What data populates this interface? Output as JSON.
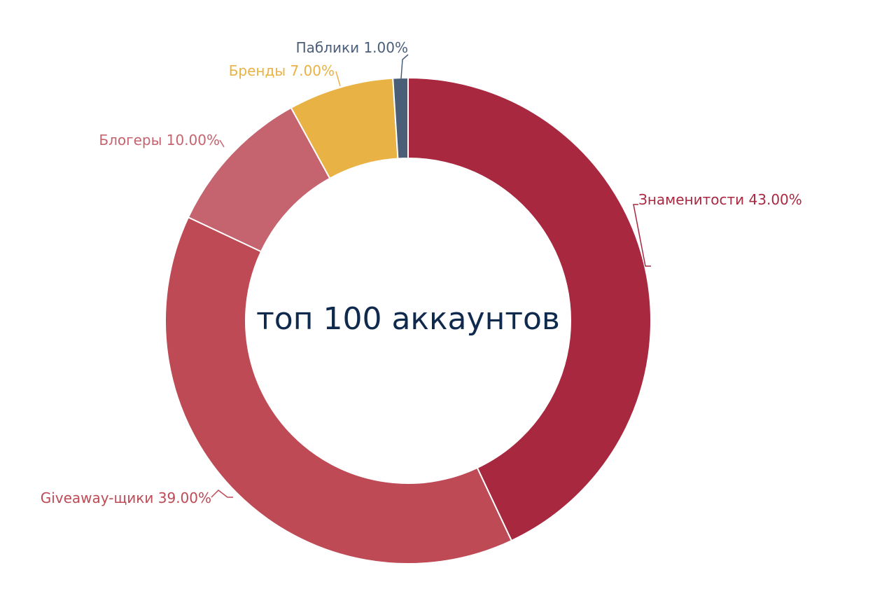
{
  "chart_data": {
    "type": "pie",
    "donut": true,
    "center_text": "топ 100 аккаунтов",
    "slices": [
      {
        "label": "Знаменитости",
        "value": 43.0,
        "display": "Знаменитости 43.00%",
        "color": "#a82840"
      },
      {
        "label": "Giveaway-щики",
        "value": 39.0,
        "display": "Giveaway-щики 39.00%",
        "color": "#bd4a55"
      },
      {
        "label": "Блогеры",
        "value": 10.0,
        "display": "Блогеры 10.00%",
        "color": "#c5646f"
      },
      {
        "label": "Бренды",
        "value": 7.0,
        "display": "Бренды 7.00%",
        "color": "#e9b245"
      },
      {
        "label": "Паблики",
        "value": 1.0,
        "display": "Паблики 1.00%",
        "color": "#4b5e78"
      }
    ],
    "label_colors": [
      "#a82840",
      "#bd4a55",
      "#c5646f",
      "#e9b245",
      "#4b5e78"
    ],
    "start_angle_deg": 0,
    "direction": "clockwise"
  }
}
